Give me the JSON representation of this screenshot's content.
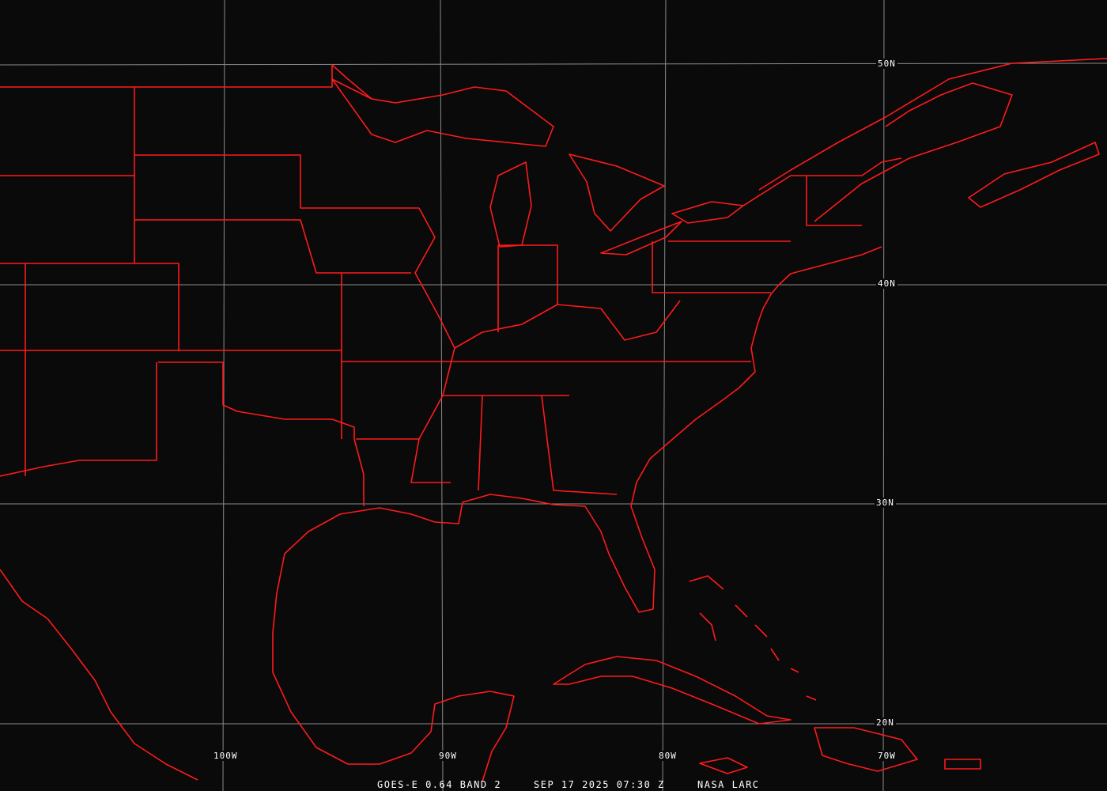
{
  "caption": {
    "satellite": "GOES-E 0.64 BAND 2",
    "datetime": "SEP 17 2025 07:30 Z",
    "source": "NASA LARC"
  },
  "grid": {
    "latitudes": [
      "50N",
      "40N",
      "30N",
      "20N"
    ],
    "longitudes": [
      "100W",
      "90W",
      "80W",
      "70W"
    ]
  },
  "colors": {
    "background": "#0a0a0a",
    "boundaries": "#ff1a1a",
    "grid": "#8a8a8a",
    "text": "#ffffff"
  }
}
